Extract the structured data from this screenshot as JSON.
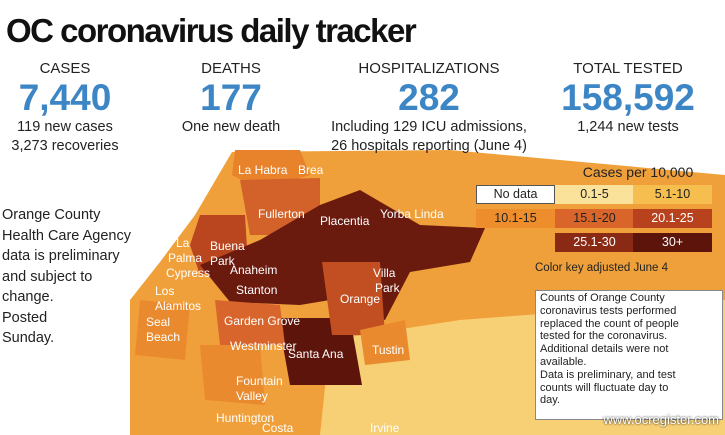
{
  "header": {
    "title": "OC coronavirus daily tracker"
  },
  "stats": [
    {
      "label": "CASES",
      "value": "7,440",
      "notes": [
        "119 new cases",
        "3,273 recoveries"
      ]
    },
    {
      "label": "DEATHS",
      "value": "177",
      "notes": [
        "One new death"
      ]
    },
    {
      "label": "HOSPITALIZATIONS",
      "value": "282",
      "notes": [
        "Including 129 ICU admissions,",
        "26 hospitals reporting (June 4)"
      ]
    },
    {
      "label": "TOTAL TESTED",
      "value": "158,592",
      "notes": [
        "1,244 new tests"
      ]
    }
  ],
  "side_note": [
    "Orange County",
    "Health Care Agency",
    "data is preliminary",
    "and subject to",
    "change.",
    "Posted",
    "Sunday."
  ],
  "legend": {
    "title": "Cases per 10,000",
    "items": [
      "No data",
      "0.1-5",
      "5.1-10",
      "10.1-15",
      "15.1-20",
      "20.1-25",
      "25.1-30",
      "30+"
    ],
    "footnote": "Color key adjusted June 4"
  },
  "note_box": [
    "Counts of Orange County",
    "coronavirus tests performed",
    "replaced the count of people",
    "tested for the coronavirus.",
    "Additional details were not",
    "available.",
    "Data is preliminary, and test",
    "counts will fluctuate day to",
    "day."
  ],
  "map": {
    "labels": [
      "La Habra",
      "Brea",
      "Fullerton",
      "Yorba Linda",
      "Placentia",
      "Buena",
      "Park",
      "La",
      "Palma",
      "Cypress",
      "Anaheim",
      "Los",
      "Alamitos",
      "Stanton",
      "Villa",
      "Park",
      "Orange",
      "Seal",
      "Beach",
      "Garden Grove",
      "Westminster",
      "Santa Ana",
      "Tustin",
      "Fountain",
      "Valley",
      "Huntington",
      "Costa",
      "Irvine"
    ]
  },
  "footer": {
    "credit": "www.ocregister.com"
  }
}
